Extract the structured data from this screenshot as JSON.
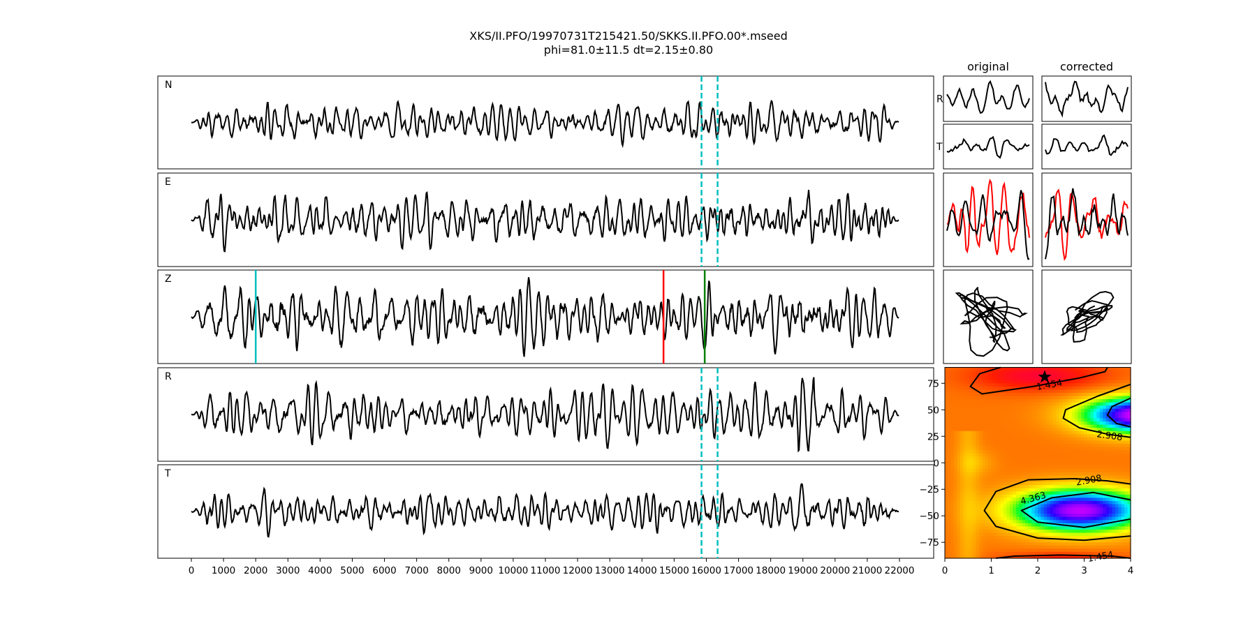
{
  "chart_data": {
    "type": "line",
    "title": "XKS/II.PFO/19970731T215421.50/SKKS.II.PFO.00*.mseed",
    "subtitle": "phi=81.0±11.5 dt=2.15±0.80",
    "traces": {
      "channels": [
        "N",
        "E",
        "Z",
        "R",
        "T"
      ],
      "xlim": [
        -1100,
        23100
      ],
      "x_ticks": [
        0,
        1000,
        2000,
        3000,
        4000,
        5000,
        6000,
        7000,
        8000,
        9000,
        10000,
        11000,
        12000,
        13000,
        14000,
        15000,
        16000,
        17000,
        18000,
        19000,
        20000,
        21000,
        22000
      ],
      "window_start": 15850,
      "window_end": 16350,
      "z_markers": [
        {
          "x": 2000,
          "color": "#00bfbf"
        },
        {
          "x": 14670,
          "color": "#ff0000"
        },
        {
          "x": 15950,
          "color": "#008000"
        }
      ],
      "trace_color": "#000000",
      "window_color": "#00bfbf"
    },
    "comparison": {
      "columns": [
        "original",
        "corrected"
      ],
      "rows": [
        "R",
        "T"
      ],
      "overlay_colors": [
        "#ff0000",
        "#000000"
      ]
    },
    "error_surface": {
      "type": "heatmap",
      "xlim": [
        0,
        4
      ],
      "ylim": [
        -90,
        90
      ],
      "x_ticks": [
        0,
        1,
        2,
        3,
        4
      ],
      "y_ticks": [
        75,
        50,
        25,
        0,
        -25,
        -50,
        -75
      ],
      "y_tick_labels": [
        "75",
        "50",
        "25",
        "0",
        "−25",
        "−50",
        "−75"
      ],
      "best": {
        "dt": 2.15,
        "phi": 81.0
      },
      "contours": [
        {
          "level": "1.454",
          "points": [
            [
              3.5,
              90
            ],
            [
              3.45,
              86
            ],
            [
              2.9,
              80
            ],
            [
              1.9,
              72
            ],
            [
              0.8,
              65
            ],
            [
              0.55,
              72
            ],
            [
              0.75,
              84
            ],
            [
              1.2,
              90
            ]
          ],
          "label_at": [
            2.25,
            74
          ]
        },
        {
          "level": "2.908",
          "points": [
            [
              4,
              74
            ],
            [
              3.3,
              63
            ],
            [
              2.6,
              50
            ],
            [
              2.55,
              42
            ],
            [
              2.9,
              33
            ],
            [
              3.5,
              27
            ],
            [
              4,
              24
            ]
          ],
          "label_at": [
            3.55,
            26
          ]
        },
        {
          "level": "4.363",
          "points": [
            [
              4,
              61
            ],
            [
              3.6,
              53
            ],
            [
              3.5,
              45
            ],
            [
              3.7,
              37
            ],
            [
              4,
              34
            ]
          ],
          "label_at": null
        },
        {
          "level": "2.908",
          "points": [
            [
              4,
              -20
            ],
            [
              3.5,
              -17
            ],
            [
              2.8,
              -15
            ],
            [
              1.8,
              -16
            ],
            [
              1.1,
              -27
            ],
            [
              0.85,
              -45
            ],
            [
              1.1,
              -60
            ],
            [
              2,
              -71
            ],
            [
              3,
              -73
            ],
            [
              4,
              -69
            ]
          ],
          "label_at": [
            3.1,
            -16
          ]
        },
        {
          "level": "4.363",
          "points": [
            [
              4,
              -35
            ],
            [
              3.2,
              -28
            ],
            [
              2.3,
              -33
            ],
            [
              1.65,
              -45
            ],
            [
              2,
              -56
            ],
            [
              3,
              -61
            ],
            [
              4,
              -53
            ]
          ],
          "label_at": [
            1.9,
            -33
          ]
        },
        {
          "level": "1.454",
          "points": [
            [
              1.1,
              -90
            ],
            [
              1.5,
              -88
            ],
            [
              2.5,
              -87
            ],
            [
              3.6,
              -88
            ],
            [
              4,
              -90
            ]
          ],
          "label_at": [
            3.35,
            -88
          ]
        }
      ]
    }
  }
}
